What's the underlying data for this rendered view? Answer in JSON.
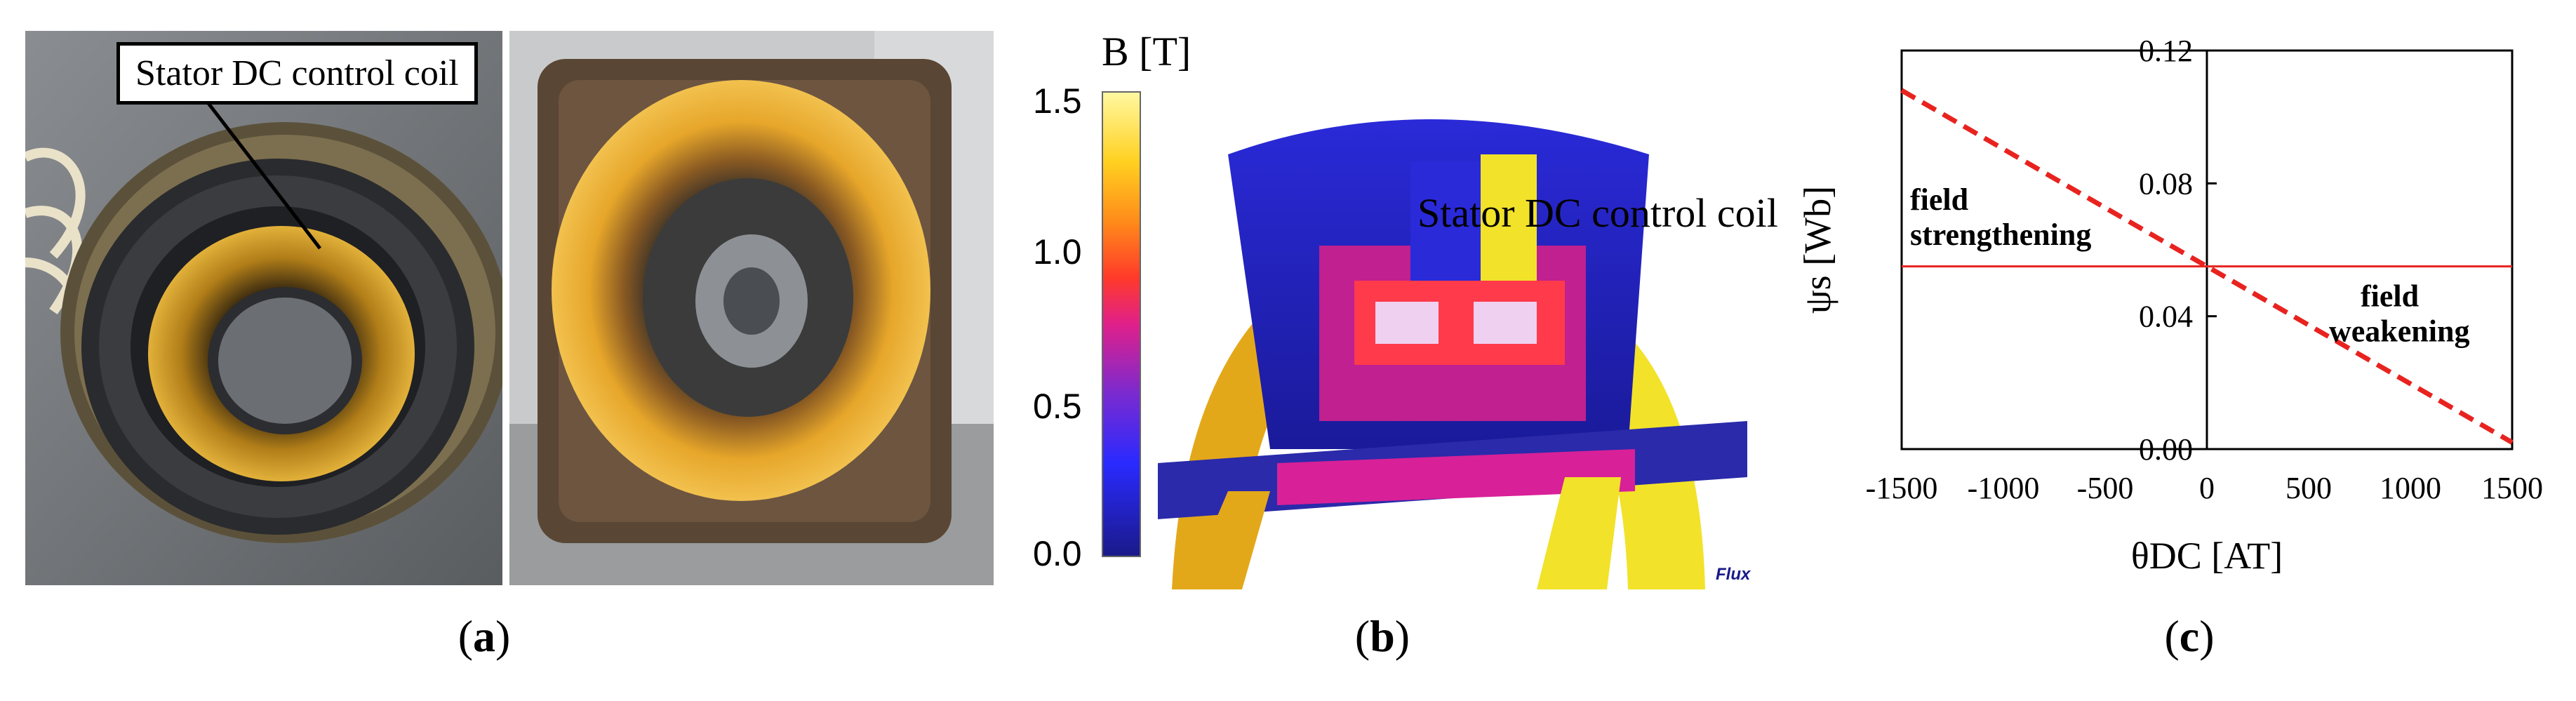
{
  "panel_a": {
    "callout": "Stator DC control coil",
    "caption": "(a)"
  },
  "panel_b": {
    "scale_title": "B [T]",
    "scale_ticks": [
      "1.5",
      "1.0",
      "0.5",
      "0.0"
    ],
    "label": "Stator DC control coil",
    "logo": "Flux",
    "caption": "(b)"
  },
  "panel_c": {
    "caption": "(c)",
    "chart_data": {
      "type": "line",
      "xlabel": "θDC [AT]",
      "ylabel": "ψs [Wb]",
      "xlim": [
        -1500,
        1500
      ],
      "ylim": [
        0.0,
        0.12
      ],
      "xticks": [
        "-1500",
        "-1000",
        "-500",
        "0",
        "500",
        "1000",
        "1500"
      ],
      "yticks": [
        "0.00",
        "0.04",
        "0.08",
        "0.12"
      ],
      "series": [
        {
          "style": "dashed",
          "color": "#e8231f",
          "x": [
            -1500,
            0,
            1500
          ],
          "y": [
            0.108,
            0.055,
            0.002
          ]
        },
        {
          "style": "solid",
          "color": "#e8231f",
          "x": [
            -1500,
            1500
          ],
          "y": [
            0.055,
            0.055
          ]
        }
      ],
      "annotations": [
        {
          "text_lines": [
            "field",
            "strengthening"
          ]
        },
        {
          "text_lines": [
            "field",
            "weakening"
          ]
        }
      ]
    }
  }
}
